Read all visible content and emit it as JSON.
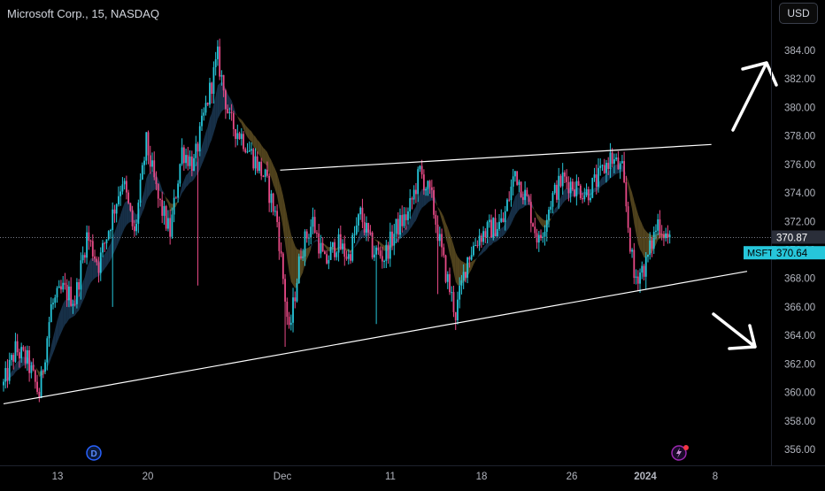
{
  "header": {
    "title": "Microsoft Corp., 15, NASDAQ",
    "currency": "USD"
  },
  "colors": {
    "background": "#000000",
    "up_candle": "#26c6da",
    "down_candle": "#e84a86",
    "ema_fill": "#1a3550",
    "ema_fill_bear": "#5a4a20",
    "trendline": "#ffffff",
    "ticker_badge": "#26c6da",
    "price_label_bg": "#2a2e39",
    "text": "#d1d4dc",
    "axis_text": "#b2b5be"
  },
  "chart_data": {
    "type": "candlestick",
    "symbol": "MSFT",
    "interval": "15",
    "exchange": "NASDAQ",
    "ylim": [
      355,
      387
    ],
    "y_ticks": [
      "356.00",
      "358.00",
      "360.00",
      "362.00",
      "364.00",
      "366.00",
      "368.00",
      "370.00",
      "372.00",
      "374.00",
      "376.00",
      "378.00",
      "380.00",
      "382.00",
      "384.00"
    ],
    "x_ticks": [
      "13",
      "20",
      "Dec",
      "11",
      "18",
      "26",
      "2024",
      "8"
    ],
    "current_price": "370.64",
    "crosshair_price": "370.87",
    "ticker_label": "MSFT",
    "price_path": [
      {
        "t": 0,
        "p": 360.5
      },
      {
        "t": 2,
        "p": 363.0
      },
      {
        "t": 4,
        "p": 362.2
      },
      {
        "t": 6,
        "p": 359.8
      },
      {
        "t": 8,
        "p": 366.0
      },
      {
        "t": 10,
        "p": 367.2
      },
      {
        "t": 12,
        "p": 366.5
      },
      {
        "t": 14,
        "p": 371.0
      },
      {
        "t": 16,
        "p": 369.0
      },
      {
        "t": 18,
        "p": 372.0
      },
      {
        "t": 20,
        "p": 375.0
      },
      {
        "t": 22,
        "p": 371.0
      },
      {
        "t": 24,
        "p": 377.5
      },
      {
        "t": 26,
        "p": 373.5
      },
      {
        "t": 28,
        "p": 371.2
      },
      {
        "t": 30,
        "p": 377.0
      },
      {
        "t": 32,
        "p": 376.0
      },
      {
        "t": 34,
        "p": 380.0
      },
      {
        "t": 36,
        "p": 383.5
      },
      {
        "t": 38,
        "p": 379.0
      },
      {
        "t": 40,
        "p": 378.0
      },
      {
        "t": 42,
        "p": 376.5
      },
      {
        "t": 44,
        "p": 375.0
      },
      {
        "t": 46,
        "p": 372.0
      },
      {
        "t": 48,
        "p": 364.0
      },
      {
        "t": 50,
        "p": 370.0
      },
      {
        "t": 52,
        "p": 372.0
      },
      {
        "t": 54,
        "p": 369.0
      },
      {
        "t": 56,
        "p": 370.5
      },
      {
        "t": 58,
        "p": 369.5
      },
      {
        "t": 60,
        "p": 372.5
      },
      {
        "t": 62,
        "p": 370.0
      },
      {
        "t": 64,
        "p": 369.5
      },
      {
        "t": 66,
        "p": 371.5
      },
      {
        "t": 68,
        "p": 372.5
      },
      {
        "t": 70,
        "p": 375.5
      },
      {
        "t": 72,
        "p": 373.5
      },
      {
        "t": 74,
        "p": 369.0
      },
      {
        "t": 76,
        "p": 365.5
      },
      {
        "t": 78,
        "p": 369.5
      },
      {
        "t": 80,
        "p": 371.0
      },
      {
        "t": 82,
        "p": 371.5
      },
      {
        "t": 84,
        "p": 372.0
      },
      {
        "t": 86,
        "p": 375.5
      },
      {
        "t": 88,
        "p": 373.5
      },
      {
        "t": 90,
        "p": 370.5
      },
      {
        "t": 92,
        "p": 373.5
      },
      {
        "t": 94,
        "p": 375.0
      },
      {
        "t": 96,
        "p": 374.5
      },
      {
        "t": 98,
        "p": 374.0
      },
      {
        "t": 100,
        "p": 375.0
      },
      {
        "t": 102,
        "p": 376.5
      },
      {
        "t": 104,
        "p": 375.5
      },
      {
        "t": 106,
        "p": 368.0
      },
      {
        "t": 108,
        "p": 369.0
      },
      {
        "t": 110,
        "p": 372.0
      },
      {
        "t": 112,
        "p": 370.6
      }
    ],
    "trendlines": [
      {
        "name": "upper-trendline",
        "from": {
          "t": 46.5,
          "p": 375.6
        },
        "to": {
          "t": 119,
          "p": 377.4
        }
      },
      {
        "name": "lower-trendline",
        "from": {
          "t": 0,
          "p": 359.2
        },
        "to": {
          "t": 125,
          "p": 368.5
        }
      }
    ],
    "annotations": [
      {
        "name": "arrow-up-annotation",
        "direction": "up"
      },
      {
        "name": "arrow-down-annotation",
        "direction": "down"
      }
    ]
  }
}
